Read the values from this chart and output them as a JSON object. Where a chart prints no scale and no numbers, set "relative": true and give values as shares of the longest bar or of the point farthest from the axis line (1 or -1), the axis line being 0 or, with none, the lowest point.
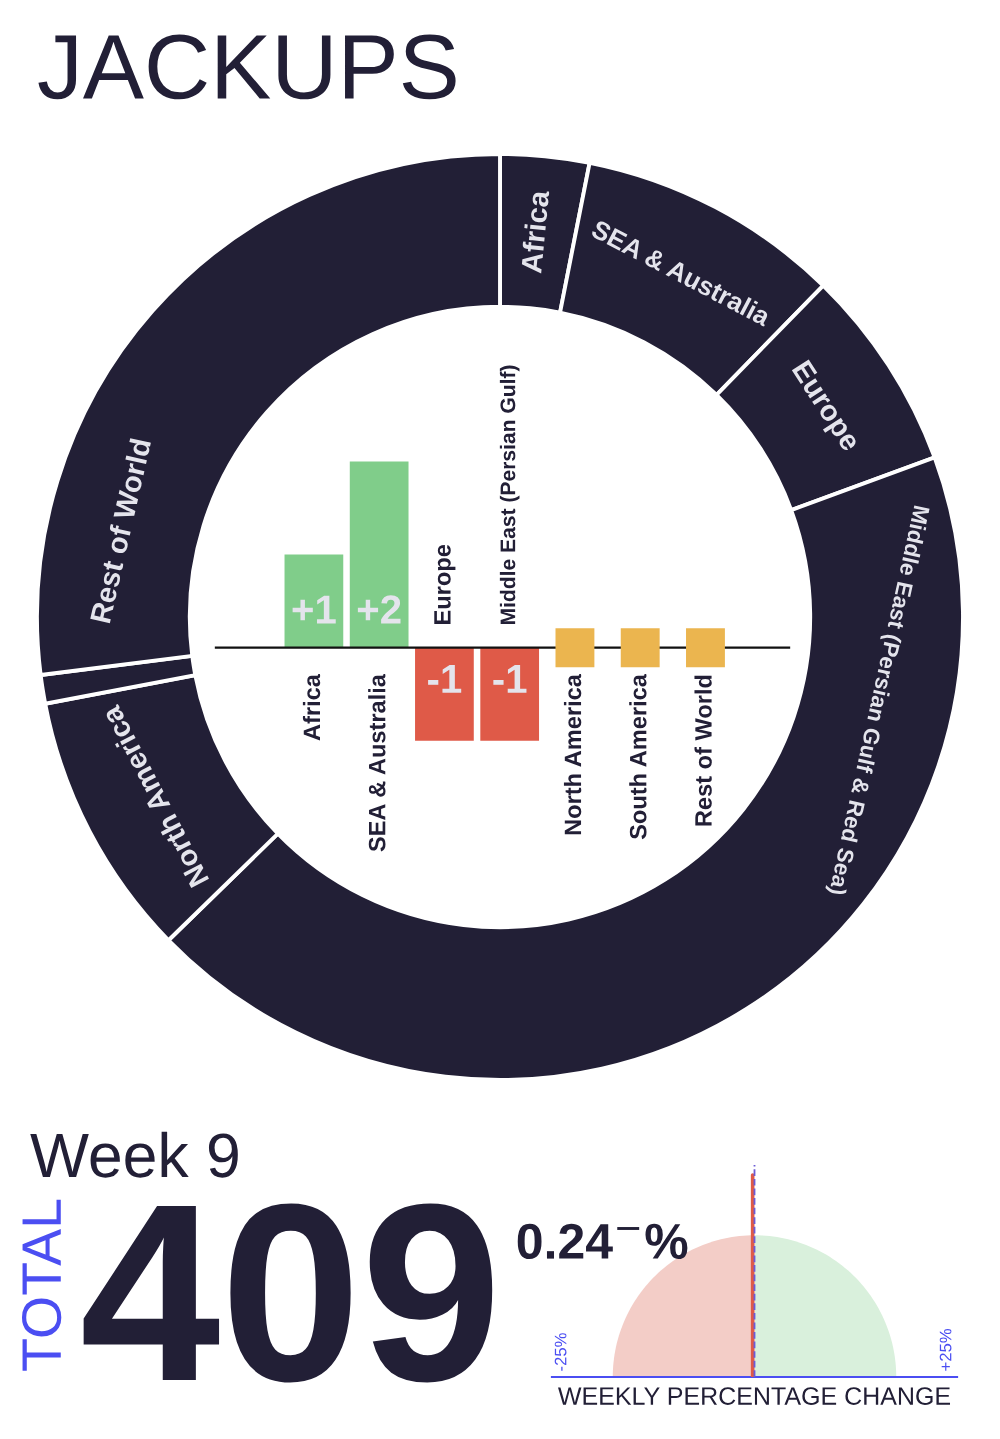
{
  "chart_data": [
    {
      "type": "donut",
      "title": "JACKUPS",
      "categories": [
        "Africa",
        "SEA & Australia",
        "Europe",
        "Middle East (Persian Gulf & Red Sea)",
        "North America",
        null,
        "Rest of World"
      ],
      "values": [
        3.1,
        9.2,
        7.1,
        43.3,
        9.3,
        1.0,
        27.0
      ],
      "colors": [
        "#221f36",
        "#221f36",
        "#221f36",
        "#221f36",
        "#221f36",
        "#221f36",
        "#221f36"
      ]
    },
    {
      "type": "bar",
      "categories": [
        "Africa",
        "SEA & Australia",
        "Europe",
        "Middle East (Persian Gulf)",
        "North America",
        "South America",
        "Rest of World"
      ],
      "series": [
        {
          "type": "bar",
          "values": [
            1,
            2,
            -1,
            -1,
            null,
            null,
            null
          ],
          "colors": [
            "#80cd8a",
            "#80cd8a",
            "#df5a48",
            "#df5a48",
            null,
            null,
            null
          ],
          "value_labels": [
            "+1",
            "+2",
            "-1",
            "-1",
            null,
            null,
            null
          ]
        },
        {
          "type": "scatter",
          "values": [
            null,
            null,
            null,
            null,
            0,
            0,
            0
          ],
          "color": "#ebb54f",
          "marker": "square"
        }
      ]
    },
    {
      "type": "other",
      "title": "Week 9",
      "ylabel": "TOTAL",
      "annotations": [
        "409"
      ]
    },
    {
      "type": "line",
      "relative": true,
      "xlabel": "WEEKLY PERCENTAGE CHANGE",
      "xlim": [
        -26.3,
        26.3
      ],
      "xticks": [
        {
          "value": -25,
          "label": "-25%"
        },
        {
          "value": 25,
          "label": "+25%"
        }
      ],
      "series": [
        {
          "x": [
            -0.24,
            -0.24
          ],
          "values": [
            0,
            1
          ],
          "color": "#df5a48"
        }
      ],
      "annotations": [
        {
          "text": "0.24$^{−}$%",
          "x": -0.24,
          "y": 0.65
        }
      ],
      "ref_lines": [
        {
          "axis": "x",
          "value": 0,
          "color": "#6b5bd6",
          "line_style": "dashed"
        }
      ]
    }
  ]
}
